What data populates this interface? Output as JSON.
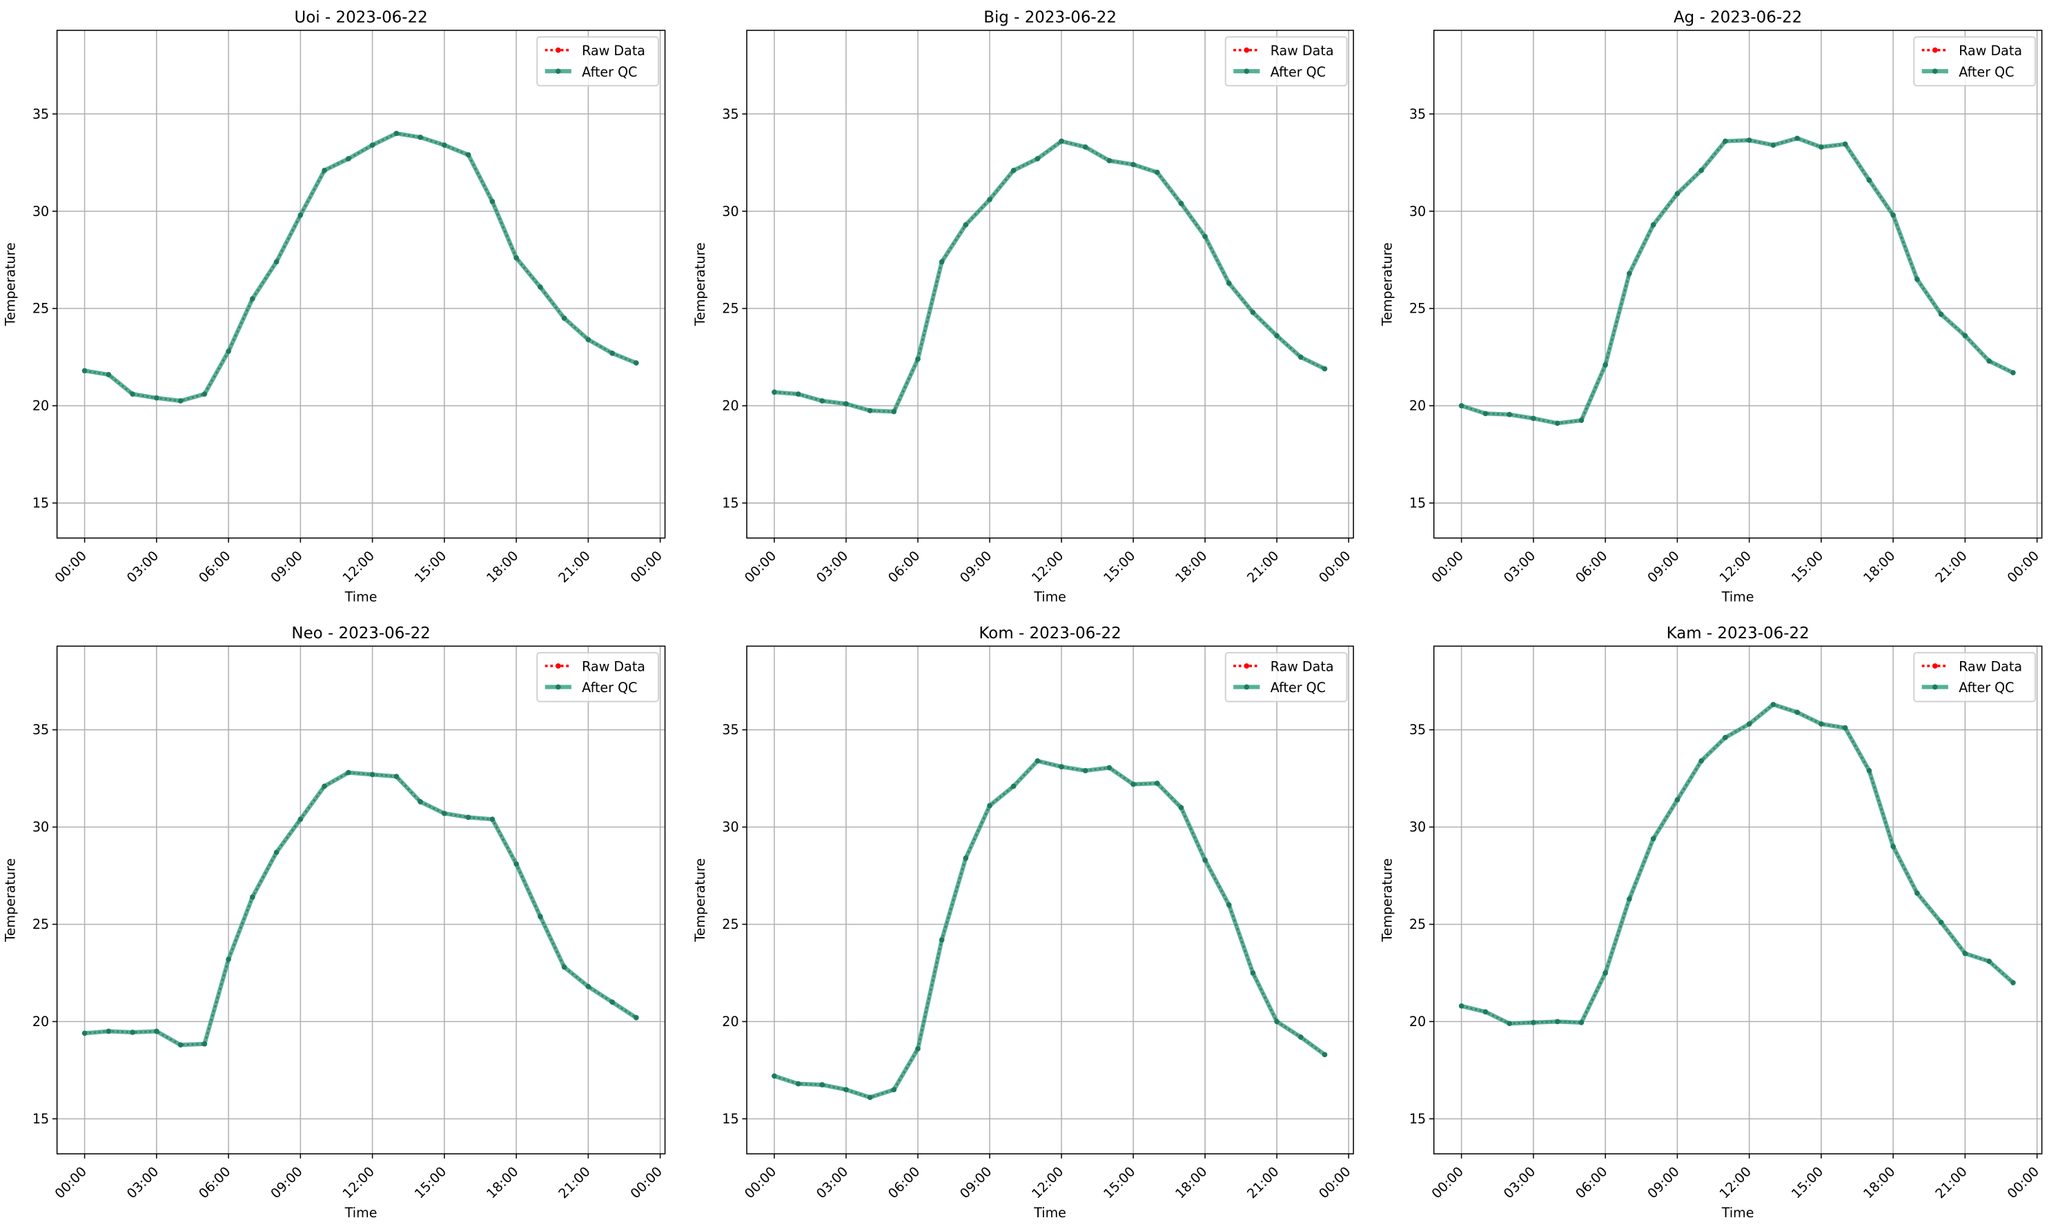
{
  "chart_data": [
    {
      "type": "line",
      "title": "Uoi - 2023-06-22",
      "xlabel": "Time",
      "ylabel": "Temperature",
      "ylim": [
        13.2,
        39.3
      ],
      "grid": true,
      "legend_position": "top-right",
      "x": [
        "00:00",
        "01:00",
        "02:00",
        "03:00",
        "04:00",
        "05:00",
        "06:00",
        "07:00",
        "08:00",
        "09:00",
        "10:00",
        "11:00",
        "12:00",
        "13:00",
        "14:00",
        "15:00",
        "16:00",
        "17:00",
        "18:00",
        "19:00",
        "20:00",
        "21:00",
        "22:00",
        "23:00"
      ],
      "series": [
        {
          "name": "Raw Data",
          "color": "#ff0000",
          "values": [
            21.8,
            21.6,
            20.6,
            20.4,
            20.25,
            20.6,
            22.8,
            25.5,
            27.4,
            29.8,
            32.1,
            32.7,
            33.4,
            34.0,
            33.8,
            33.4,
            32.9,
            30.5,
            27.6,
            26.1,
            24.5,
            23.4,
            22.7,
            22.2
          ]
        },
        {
          "name": "After QC",
          "color": "#2a9d7c",
          "values": [
            21.8,
            21.6,
            20.6,
            20.4,
            20.25,
            20.6,
            22.8,
            25.5,
            27.4,
            29.8,
            32.1,
            32.7,
            33.4,
            34.0,
            33.8,
            33.4,
            32.9,
            30.5,
            27.6,
            26.1,
            24.5,
            23.4,
            22.7,
            22.2
          ]
        }
      ]
    },
    {
      "type": "line",
      "title": "Big - 2023-06-22",
      "xlabel": "Time",
      "ylabel": "Temperature",
      "ylim": [
        13.2,
        39.3
      ],
      "grid": true,
      "legend_position": "top-right",
      "x": [
        "00:00",
        "01:00",
        "02:00",
        "03:00",
        "04:00",
        "05:00",
        "06:00",
        "07:00",
        "08:00",
        "09:00",
        "10:00",
        "11:00",
        "12:00",
        "13:00",
        "14:00",
        "15:00",
        "16:00",
        "17:00",
        "18:00",
        "19:00",
        "20:00",
        "21:00",
        "22:00",
        "23:00"
      ],
      "series": [
        {
          "name": "Raw Data",
          "color": "#ff0000",
          "values": [
            20.7,
            20.6,
            20.25,
            20.1,
            19.75,
            19.7,
            22.4,
            27.4,
            29.3,
            30.6,
            32.1,
            32.7,
            33.6,
            33.3,
            32.6,
            32.4,
            32.0,
            30.4,
            28.7,
            26.3,
            24.8,
            23.6,
            22.5,
            21.9
          ]
        },
        {
          "name": "After QC",
          "color": "#2a9d7c",
          "values": [
            20.7,
            20.6,
            20.25,
            20.1,
            19.75,
            19.7,
            22.4,
            27.4,
            29.3,
            30.6,
            32.1,
            32.7,
            33.6,
            33.3,
            32.6,
            32.4,
            32.0,
            30.4,
            28.7,
            26.3,
            24.8,
            23.6,
            22.5,
            21.9
          ]
        }
      ]
    },
    {
      "type": "line",
      "title": "Ag - 2023-06-22",
      "xlabel": "Time",
      "ylabel": "Temperature",
      "ylim": [
        13.2,
        39.3
      ],
      "grid": true,
      "legend_position": "top-right",
      "x": [
        "00:00",
        "01:00",
        "02:00",
        "03:00",
        "04:00",
        "05:00",
        "06:00",
        "07:00",
        "08:00",
        "09:00",
        "10:00",
        "11:00",
        "12:00",
        "13:00",
        "14:00",
        "15:00",
        "16:00",
        "17:00",
        "18:00",
        "19:00",
        "20:00",
        "21:00",
        "22:00",
        "23:00"
      ],
      "series": [
        {
          "name": "Raw Data",
          "color": "#ff0000",
          "values": [
            20.0,
            19.6,
            19.55,
            19.35,
            19.1,
            19.25,
            22.1,
            26.8,
            29.3,
            30.9,
            32.1,
            33.6,
            33.65,
            33.4,
            33.75,
            33.3,
            33.45,
            31.6,
            29.8,
            26.5,
            24.7,
            23.6,
            22.3,
            21.7
          ]
        },
        {
          "name": "After QC",
          "color": "#2a9d7c",
          "values": [
            20.0,
            19.6,
            19.55,
            19.35,
            19.1,
            19.25,
            22.1,
            26.8,
            29.3,
            30.9,
            32.1,
            33.6,
            33.65,
            33.4,
            33.75,
            33.3,
            33.45,
            31.6,
            29.8,
            26.5,
            24.7,
            23.6,
            22.3,
            21.7
          ]
        }
      ]
    },
    {
      "type": "line",
      "title": "Neo - 2023-06-22",
      "xlabel": "Time",
      "ylabel": "Temperature",
      "ylim": [
        13.2,
        39.3
      ],
      "grid": true,
      "legend_position": "top-right",
      "x": [
        "00:00",
        "01:00",
        "02:00",
        "03:00",
        "04:00",
        "05:00",
        "06:00",
        "07:00",
        "08:00",
        "09:00",
        "10:00",
        "11:00",
        "12:00",
        "13:00",
        "14:00",
        "15:00",
        "16:00",
        "17:00",
        "18:00",
        "19:00",
        "20:00",
        "21:00",
        "22:00",
        "23:00"
      ],
      "series": [
        {
          "name": "Raw Data",
          "color": "#ff0000",
          "values": [
            19.4,
            19.5,
            19.45,
            19.5,
            18.8,
            18.85,
            23.2,
            26.4,
            28.7,
            30.4,
            32.1,
            32.8,
            32.7,
            32.6,
            31.3,
            30.7,
            30.5,
            30.4,
            28.1,
            25.4,
            22.8,
            21.8,
            21.0,
            20.2
          ]
        },
        {
          "name": "After QC",
          "color": "#2a9d7c",
          "values": [
            19.4,
            19.5,
            19.45,
            19.5,
            18.8,
            18.85,
            23.2,
            26.4,
            28.7,
            30.4,
            32.1,
            32.8,
            32.7,
            32.6,
            31.3,
            30.7,
            30.5,
            30.4,
            28.1,
            25.4,
            22.8,
            21.8,
            21.0,
            20.2
          ]
        }
      ]
    },
    {
      "type": "line",
      "title": "Kom - 2023-06-22",
      "xlabel": "Time",
      "ylabel": "Temperature",
      "ylim": [
        13.2,
        39.3
      ],
      "grid": true,
      "legend_position": "top-right",
      "x": [
        "00:00",
        "01:00",
        "02:00",
        "03:00",
        "04:00",
        "05:00",
        "06:00",
        "07:00",
        "08:00",
        "09:00",
        "10:00",
        "11:00",
        "12:00",
        "13:00",
        "14:00",
        "15:00",
        "16:00",
        "17:00",
        "18:00",
        "19:00",
        "20:00",
        "21:00",
        "22:00",
        "23:00"
      ],
      "series": [
        {
          "name": "Raw Data",
          "color": "#ff0000",
          "values": [
            17.2,
            16.8,
            16.75,
            16.5,
            16.1,
            16.5,
            18.6,
            24.2,
            28.4,
            31.1,
            32.1,
            33.4,
            33.1,
            32.9,
            33.05,
            32.2,
            32.25,
            31.0,
            28.3,
            26.0,
            22.5,
            20.0,
            19.2,
            18.3
          ]
        },
        {
          "name": "After QC",
          "color": "#2a9d7c",
          "values": [
            17.2,
            16.8,
            16.75,
            16.5,
            16.1,
            16.5,
            18.6,
            24.2,
            28.4,
            31.1,
            32.1,
            33.4,
            33.1,
            32.9,
            33.05,
            32.2,
            32.25,
            31.0,
            28.3,
            26.0,
            22.5,
            20.0,
            19.2,
            18.3
          ]
        }
      ]
    },
    {
      "type": "line",
      "title": "Kam - 2023-06-22",
      "xlabel": "Time",
      "ylabel": "Temperature",
      "ylim": [
        13.2,
        39.3
      ],
      "grid": true,
      "legend_position": "top-right",
      "x": [
        "00:00",
        "01:00",
        "02:00",
        "03:00",
        "04:00",
        "05:00",
        "06:00",
        "07:00",
        "08:00",
        "09:00",
        "10:00",
        "11:00",
        "12:00",
        "13:00",
        "14:00",
        "15:00",
        "16:00",
        "17:00",
        "18:00",
        "19:00",
        "20:00",
        "21:00",
        "22:00",
        "23:00"
      ],
      "series": [
        {
          "name": "Raw Data",
          "color": "#ff0000",
          "values": [
            20.8,
            20.5,
            19.9,
            19.95,
            20.0,
            19.95,
            22.5,
            26.3,
            29.4,
            31.4,
            33.4,
            34.6,
            35.3,
            36.3,
            35.9,
            35.3,
            35.1,
            32.9,
            29.0,
            26.6,
            25.1,
            23.5,
            23.1,
            22.0
          ]
        },
        {
          "name": "After QC",
          "color": "#2a9d7c",
          "values": [
            20.8,
            20.5,
            19.9,
            19.95,
            20.0,
            19.95,
            22.5,
            26.3,
            29.4,
            31.4,
            33.4,
            34.6,
            35.3,
            36.3,
            35.9,
            35.3,
            35.1,
            32.9,
            29.0,
            26.6,
            25.1,
            23.5,
            23.1,
            22.0
          ]
        }
      ]
    }
  ],
  "x_tick_labels": [
    "00:00",
    "03:00",
    "06:00",
    "09:00",
    "12:00",
    "15:00",
    "18:00",
    "21:00",
    "00:00"
  ],
  "y_tick_labels": [
    "15",
    "20",
    "25",
    "30",
    "35"
  ]
}
